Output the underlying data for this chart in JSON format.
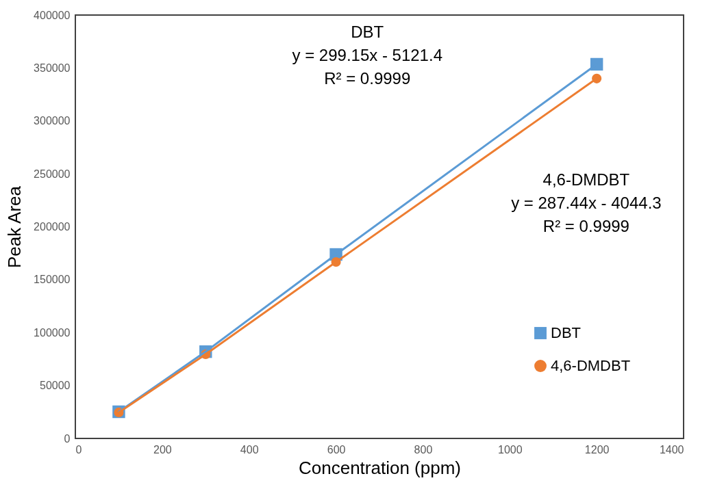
{
  "chart_data": {
    "type": "line",
    "xlabel": "Concentration (ppm)",
    "ylabel": "Peak Area",
    "xlim": [
      0,
      1400
    ],
    "xticks": [
      0,
      200,
      400,
      600,
      800,
      1000,
      1200,
      1400
    ],
    "ylim": [
      0,
      400000
    ],
    "yticks": [
      0,
      50000,
      100000,
      150000,
      200000,
      250000,
      300000,
      350000,
      400000
    ],
    "grid": false,
    "legend": "bottom right",
    "x": [
      100,
      300,
      600,
      1200
    ],
    "series": [
      {
        "name": "DBT",
        "color": "#5b9bd5",
        "marker": "square",
        "values": [
          25200,
          82000,
          173800,
          353500
        ]
      },
      {
        "name": "4,6-DMDBT",
        "color": "#ed7d31",
        "marker": "circle",
        "values": [
          24600,
          79500,
          166700,
          340000
        ]
      }
    ],
    "annotations": [
      "DBT\ny = 299.15x - 5121.4\nR² = 0.9999",
      "4,6-DMDBT\ny = 287.44x - 4044.3\nR² = 0.9999"
    ]
  }
}
